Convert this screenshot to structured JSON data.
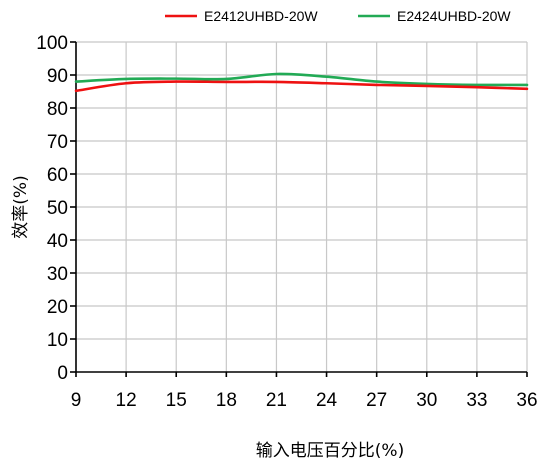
{
  "chart_data": {
    "type": "line",
    "title": "",
    "xlabel": "输入电压百分比(%)",
    "ylabel": "效率(%)",
    "x": [
      9,
      12,
      15,
      18,
      21,
      24,
      27,
      30,
      33,
      36
    ],
    "xlim": [
      9,
      36
    ],
    "ylim": [
      0,
      100
    ],
    "xticks": [
      9,
      12,
      15,
      18,
      21,
      24,
      27,
      30,
      33,
      36
    ],
    "yticks": [
      0,
      10,
      20,
      30,
      40,
      50,
      60,
      70,
      80,
      90,
      100
    ],
    "grid": true,
    "legend_position": "top",
    "series": [
      {
        "name": "E2412UHBD-20W",
        "color": "#ee1111",
        "values": [
          85.2,
          87.5,
          88.0,
          87.9,
          87.9,
          87.5,
          87.0,
          86.7,
          86.3,
          85.8
        ]
      },
      {
        "name": "E2424UHBD-20W",
        "color": "#22aa55",
        "values": [
          88.0,
          88.8,
          88.9,
          88.8,
          90.3,
          89.5,
          88.0,
          87.3,
          87.0,
          87.0
        ]
      }
    ]
  }
}
